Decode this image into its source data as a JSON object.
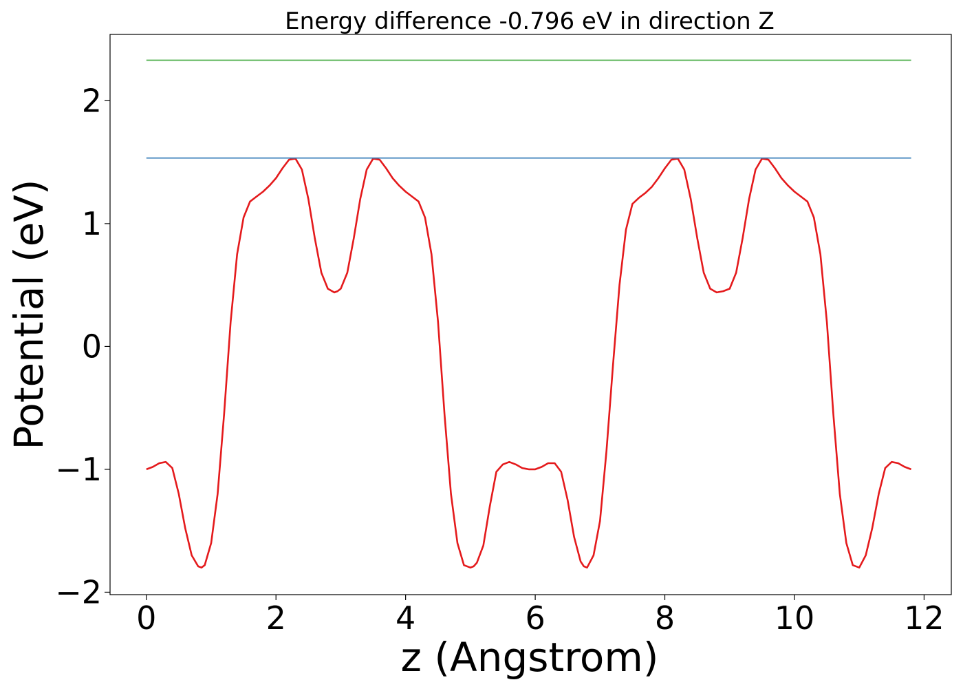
{
  "chart_data": {
    "type": "line",
    "title": "Energy difference -0.796 eV in direction Z",
    "xlabel": "z (Angstrom)",
    "ylabel": "Potential (eV)",
    "xlim": [
      -0.56,
      12.42
    ],
    "ylim": [
      -2.02,
      2.54
    ],
    "xticks": [
      0,
      2,
      4,
      6,
      8,
      10,
      12
    ],
    "xtick_labels": [
      "0",
      "2",
      "4",
      "6",
      "8",
      "10",
      "12"
    ],
    "yticks": [
      -2,
      -1,
      0,
      1,
      2
    ],
    "ytick_labels": [
      "−2",
      "−1",
      "0",
      "1",
      "2"
    ],
    "grid": false,
    "series": [
      {
        "color": "#e41a1c",
        "x": [
          0.0,
          0.1,
          0.2,
          0.3,
          0.4,
          0.5,
          0.6,
          0.7,
          0.8,
          0.85,
          0.9,
          1.0,
          1.1,
          1.2,
          1.3,
          1.4,
          1.5,
          1.6,
          1.7,
          1.8,
          1.9,
          2.0,
          2.1,
          2.2,
          2.3,
          2.4,
          2.5,
          2.6,
          2.7,
          2.8,
          2.9,
          2.95,
          3.0,
          3.1,
          3.2,
          3.3,
          3.4,
          3.5,
          3.6,
          3.7,
          3.8,
          3.9,
          4.0,
          4.1,
          4.2,
          4.3,
          4.4,
          4.5,
          4.6,
          4.7,
          4.8,
          4.9,
          5.0,
          5.05,
          5.1,
          5.2,
          5.3,
          5.4,
          5.5,
          5.6,
          5.7,
          5.8,
          5.9,
          6.0,
          6.1,
          6.2,
          6.3,
          6.4,
          6.5,
          6.6,
          6.7,
          6.75,
          6.8,
          6.9,
          7.0,
          7.1,
          7.2,
          7.3,
          7.4,
          7.5,
          7.6,
          7.7,
          7.8,
          7.9,
          8.0,
          8.1,
          8.2,
          8.3,
          8.4,
          8.5,
          8.6,
          8.7,
          8.8,
          8.9,
          9.0,
          9.1,
          9.2,
          9.3,
          9.4,
          9.5,
          9.6,
          9.7,
          9.8,
          9.9,
          10.0,
          10.1,
          10.2,
          10.3,
          10.4,
          10.5,
          10.6,
          10.7,
          10.8,
          10.9,
          11.0,
          11.1,
          11.2,
          11.3,
          11.4,
          11.5,
          11.6,
          11.7,
          11.8
        ],
        "y": [
          -1.0,
          -0.98,
          -0.95,
          -0.94,
          -0.99,
          -1.2,
          -1.48,
          -1.7,
          -1.79,
          -1.8,
          -1.78,
          -1.6,
          -1.2,
          -0.55,
          0.2,
          0.75,
          1.05,
          1.18,
          1.22,
          1.26,
          1.31,
          1.37,
          1.45,
          1.52,
          1.53,
          1.44,
          1.2,
          0.88,
          0.6,
          0.47,
          0.44,
          0.45,
          0.47,
          0.6,
          0.88,
          1.2,
          1.44,
          1.53,
          1.52,
          1.45,
          1.37,
          1.31,
          1.26,
          1.22,
          1.18,
          1.05,
          0.75,
          0.2,
          -0.55,
          -1.2,
          -1.6,
          -1.78,
          -1.8,
          -1.79,
          -1.76,
          -1.62,
          -1.3,
          -1.02,
          -0.96,
          -0.94,
          -0.96,
          -0.99,
          -1.0,
          -1.0,
          -0.98,
          -0.95,
          -0.95,
          -1.02,
          -1.25,
          -1.55,
          -1.75,
          -1.79,
          -1.8,
          -1.7,
          -1.42,
          -0.85,
          -0.15,
          0.5,
          0.95,
          1.16,
          1.21,
          1.25,
          1.3,
          1.37,
          1.45,
          1.52,
          1.53,
          1.44,
          1.2,
          0.88,
          0.6,
          0.47,
          0.44,
          0.45,
          0.47,
          0.6,
          0.88,
          1.2,
          1.44,
          1.53,
          1.52,
          1.45,
          1.37,
          1.31,
          1.26,
          1.22,
          1.18,
          1.05,
          0.75,
          0.2,
          -0.55,
          -1.2,
          -1.6,
          -1.78,
          -1.8,
          -1.7,
          -1.48,
          -1.2,
          -0.99,
          -0.94,
          -0.95,
          -0.98,
          -1.0
        ]
      },
      {
        "color": "#377eb8",
        "x": [
          0.0,
          11.8
        ],
        "y": [
          1.534,
          1.534
        ]
      },
      {
        "color": "#4daf4a",
        "x": [
          0.0,
          11.8
        ],
        "y": [
          2.33,
          2.33
        ]
      }
    ]
  }
}
